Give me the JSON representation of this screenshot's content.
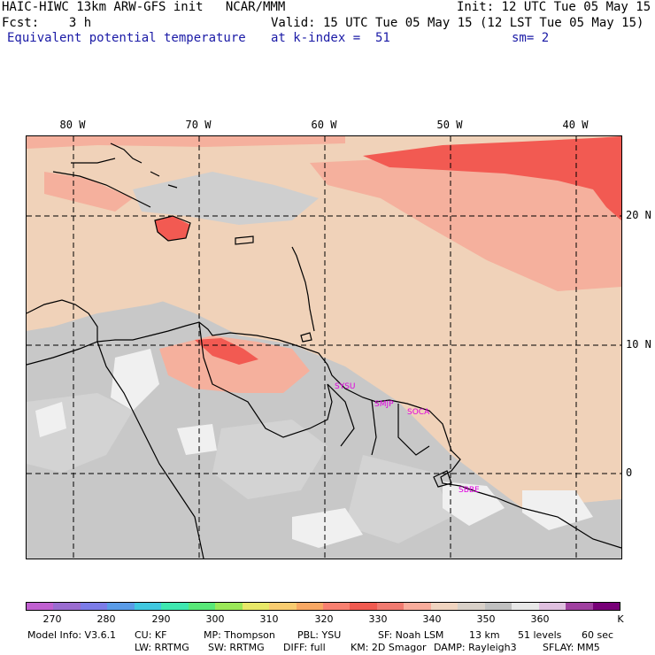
{
  "header": {
    "line1_left": "HAIC-HIWC 13km ARW-GFS init   NCAR/MMM",
    "line1_right": "Init: 12 UTC Tue 05 May 15",
    "line2_left": "Fcst:    3 h",
    "line2_right": "Valid: 15 UTC Tue 05 May 15 (12 LST Tue 05 May 15)",
    "line3_left": "Equivalent potential temperature",
    "line3_mid": "at k-index =  51",
    "line3_right": "sm= 2"
  },
  "map": {
    "lon_labels": [
      "80 W",
      "70 W",
      "60 W",
      "50 W",
      "40 W"
    ],
    "lat_labels": [
      "20 N",
      "10 N",
      "0"
    ],
    "sites": [
      "SYSU",
      "SMJP",
      "SOCA",
      "SBBE"
    ],
    "colors": {
      "land_base": "#c8c8c8",
      "gray_light": "#d3d3d3",
      "white_cloud": "#f0f0f0",
      "peach": "#f0d2b9",
      "salmon": "#f5b09d",
      "coral": "#f88070",
      "red": "#f25a52"
    }
  },
  "colorbar": {
    "colors": [
      "#c060d0",
      "#9a6cd0",
      "#7c7ce8",
      "#5a9ce8",
      "#40c8e0",
      "#3ee8b0",
      "#58e878",
      "#9ae858",
      "#e8e868",
      "#f8cc70",
      "#f8a864",
      "#f88070",
      "#f05a50",
      "#f07a70",
      "#f8ac9c",
      "#f0d4c0",
      "#d8d0c8",
      "#c0c0c0",
      "#e8e8e8",
      "#e0c0e0",
      "#a040a0",
      "#780078"
    ],
    "labels": [
      "270",
      "280",
      "290",
      "300",
      "310",
      "320",
      "330",
      "340",
      "350",
      "360",
      "K"
    ]
  },
  "footer": {
    "line1": [
      "Model Info: V3.6.1",
      "CU: KF",
      "MP: Thompson",
      "PBL: YSU",
      "SF: Noah LSM",
      "13 km",
      "51 levels",
      "60 sec"
    ],
    "line2": [
      "LW: RRTMG",
      "SW: RRTMG",
      "DIFF: full",
      "KM: 2D Smagor",
      "DAMP: Rayleigh3",
      "SFLAY: MM5"
    ]
  }
}
